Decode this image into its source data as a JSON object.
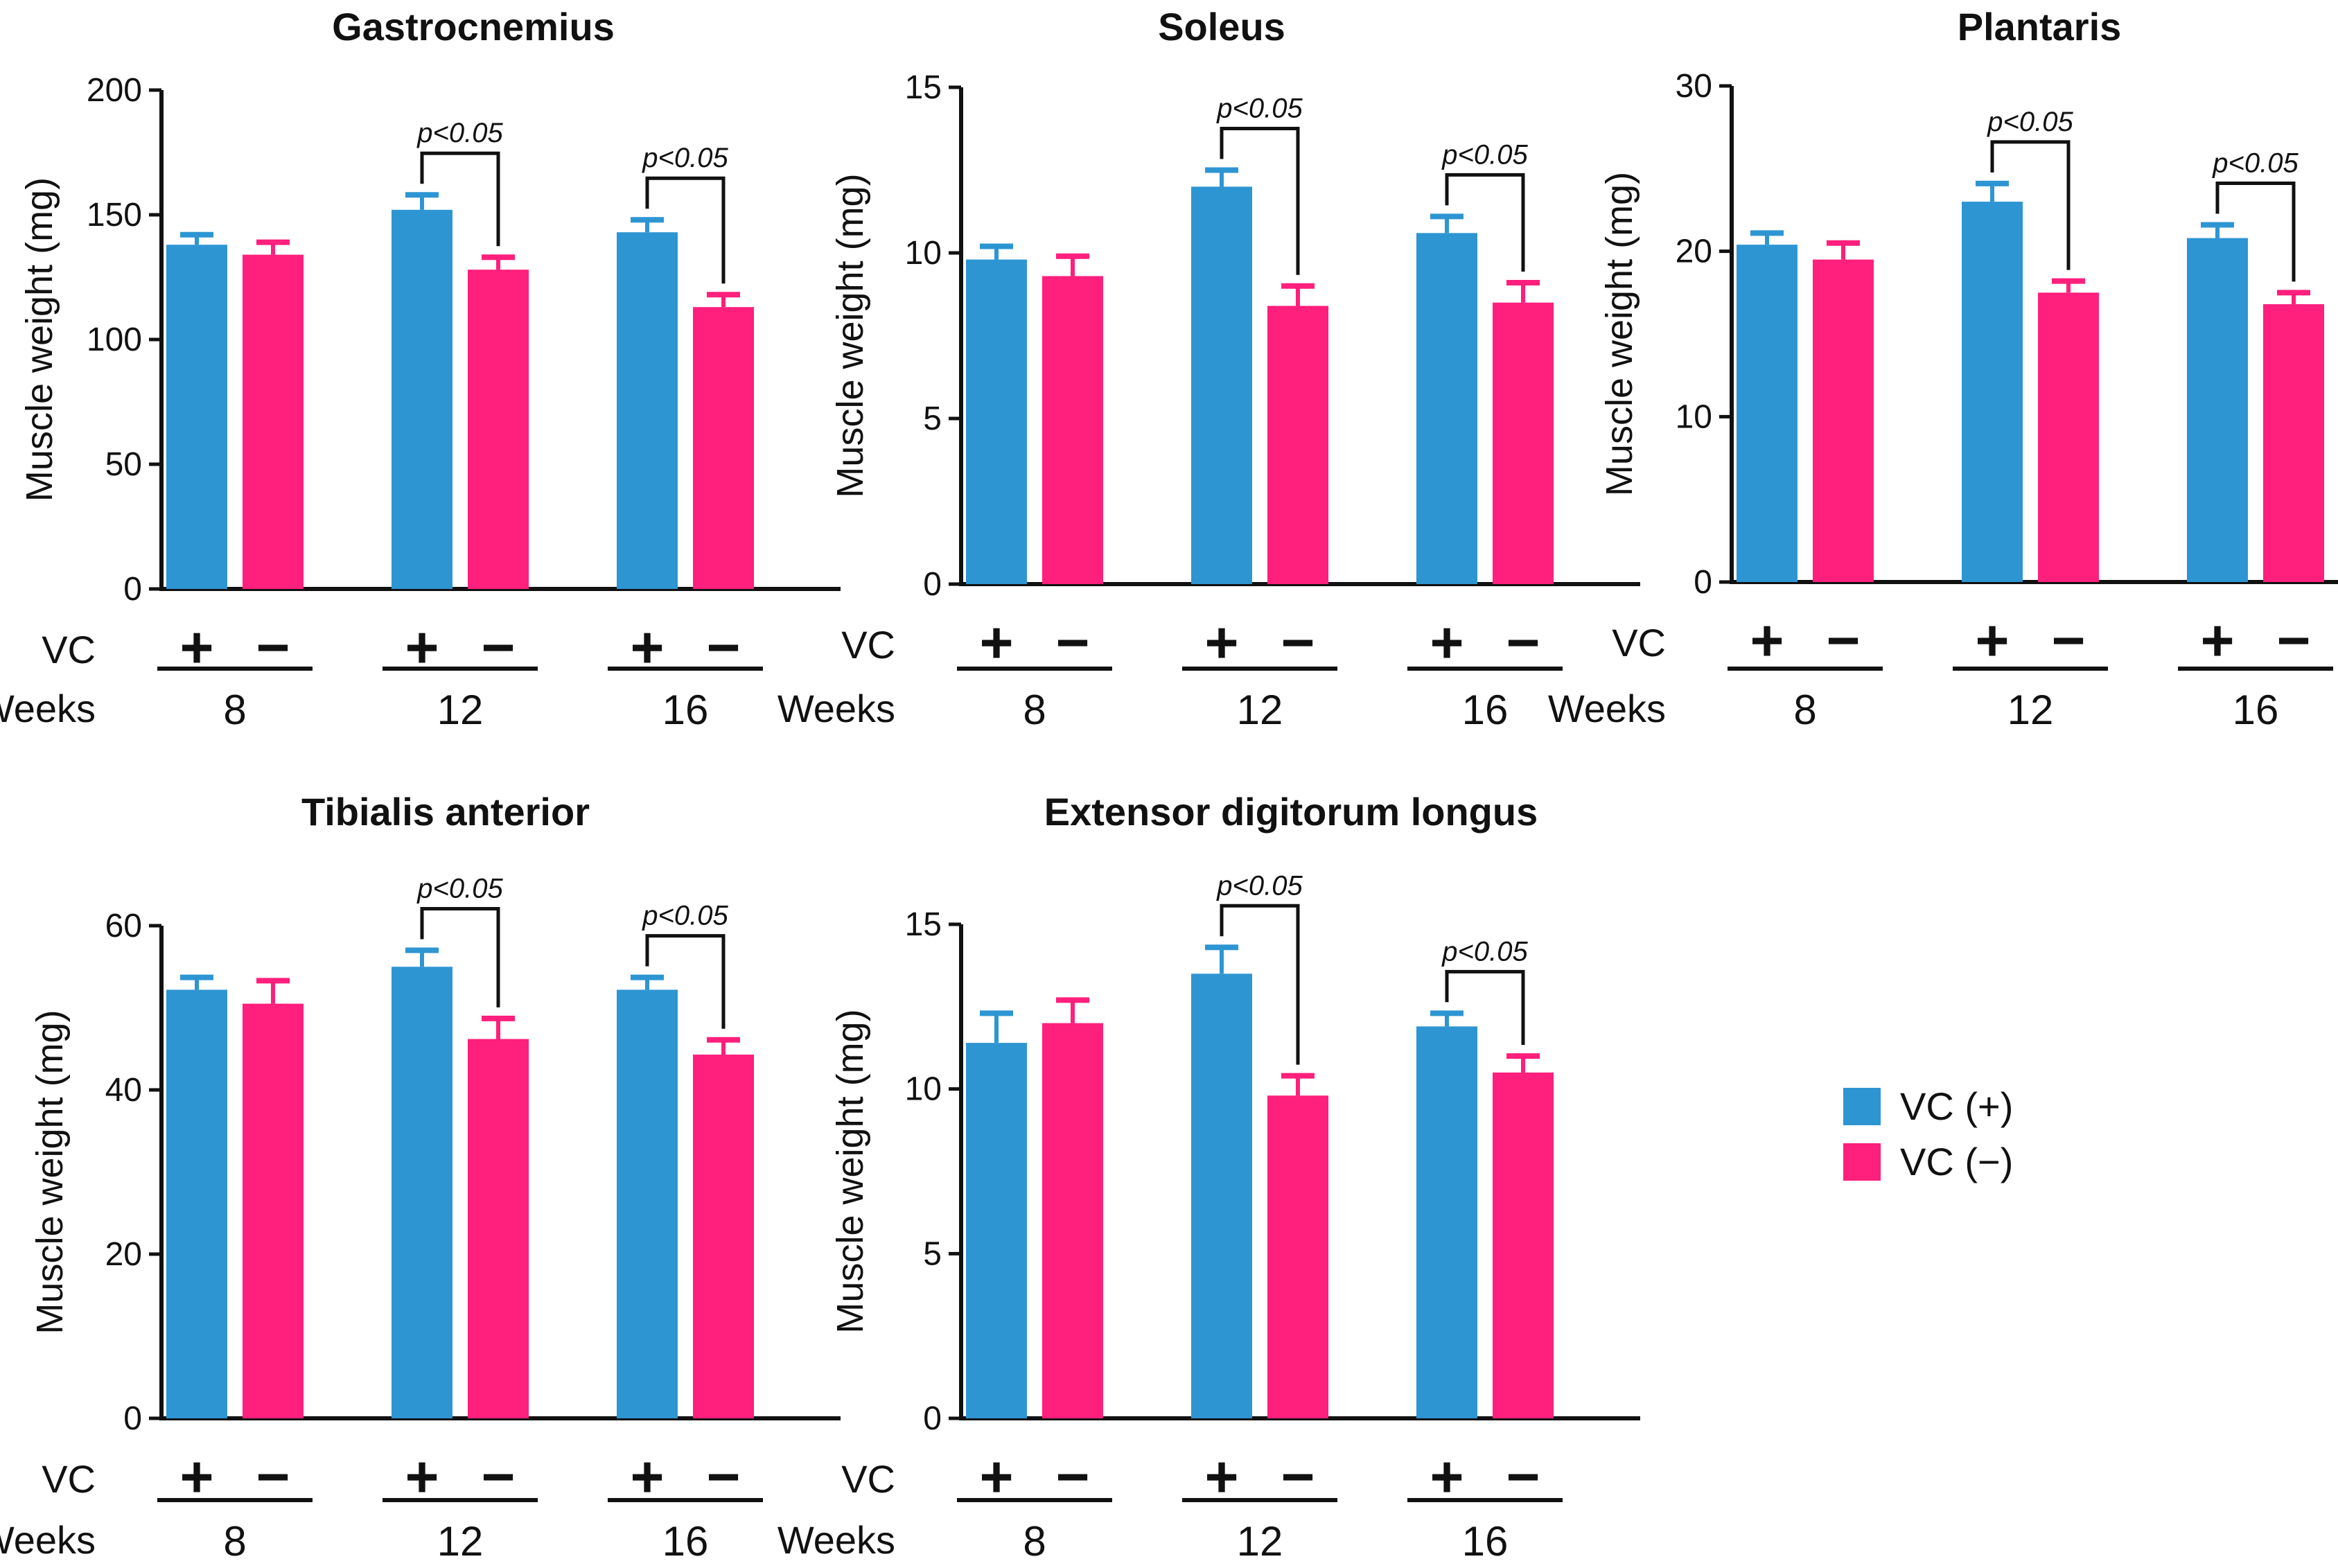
{
  "legend": [
    {
      "label": "VC (+)",
      "color": "#2e95d3"
    },
    {
      "label": "VC (−)",
      "color": "#ff1f7c"
    }
  ],
  "chart_data": [
    {
      "type": "bar",
      "title": "Gastrocnemius",
      "ylabel": "Muscle weight (mg)",
      "ylim": [
        0,
        200
      ],
      "yticks": [
        0,
        50,
        100,
        150,
        200
      ],
      "row_labels": {
        "vc": "VC",
        "weeks": "Weeks"
      },
      "categories": [
        "8",
        "12",
        "16"
      ],
      "series": [
        {
          "name": "VC (+)",
          "symbol": "+",
          "values": [
            138,
            152,
            143
          ],
          "errors": [
            4,
            6,
            5
          ]
        },
        {
          "name": "VC (−)",
          "symbol": "−",
          "values": [
            134,
            128,
            113
          ],
          "errors": [
            5,
            5,
            5
          ]
        }
      ],
      "annotations": [
        {
          "group": "12",
          "text": "p<0.05"
        },
        {
          "group": "16",
          "text": "p<0.05"
        }
      ]
    },
    {
      "type": "bar",
      "title": "Soleus",
      "ylabel": "Muscle weight (mg)",
      "ylim": [
        0,
        15
      ],
      "yticks": [
        0,
        5,
        10,
        15
      ],
      "row_labels": {
        "vc": "VC",
        "weeks": "Weeks"
      },
      "categories": [
        "8",
        "12",
        "16"
      ],
      "series": [
        {
          "name": "VC (+)",
          "symbol": "+",
          "values": [
            9.8,
            12.0,
            10.6
          ],
          "errors": [
            0.4,
            0.5,
            0.5
          ]
        },
        {
          "name": "VC (−)",
          "symbol": "−",
          "values": [
            9.3,
            8.4,
            8.5
          ],
          "errors": [
            0.6,
            0.6,
            0.6
          ]
        }
      ],
      "annotations": [
        {
          "group": "12",
          "text": "p<0.05"
        },
        {
          "group": "16",
          "text": "p<0.05"
        }
      ]
    },
    {
      "type": "bar",
      "title": "Plantaris",
      "ylabel": "Muscle weight (mg)",
      "ylim": [
        0,
        30
      ],
      "yticks": [
        0,
        10,
        20,
        30
      ],
      "row_labels": {
        "vc": "VC",
        "weeks": "Weeks"
      },
      "categories": [
        "8",
        "12",
        "16"
      ],
      "series": [
        {
          "name": "VC (+)",
          "symbol": "+",
          "values": [
            20.4,
            23.0,
            20.8
          ],
          "errors": [
            0.7,
            1.1,
            0.8
          ]
        },
        {
          "name": "VC (−)",
          "symbol": "−",
          "values": [
            19.5,
            17.5,
            16.8
          ],
          "errors": [
            1.0,
            0.7,
            0.7
          ]
        }
      ],
      "annotations": [
        {
          "group": "12",
          "text": "p<0.05"
        },
        {
          "group": "16",
          "text": "p<0.05"
        }
      ]
    },
    {
      "type": "bar",
      "title": "Tibialis anterior",
      "ylabel": "Muscle weight (mg)",
      "ylim": [
        0,
        60
      ],
      "yticks": [
        0,
        20,
        40,
        60
      ],
      "row_labels": {
        "vc": "VC",
        "weeks": "Weeks"
      },
      "categories": [
        "8",
        "12",
        "16"
      ],
      "series": [
        {
          "name": "VC (+)",
          "symbol": "+",
          "values": [
            52.2,
            55.0,
            52.2
          ],
          "errors": [
            1.5,
            2.0,
            1.5
          ]
        },
        {
          "name": "VC (−)",
          "symbol": "−",
          "values": [
            50.5,
            46.2,
            44.3
          ],
          "errors": [
            2.8,
            2.5,
            1.8
          ]
        }
      ],
      "annotations": [
        {
          "group": "12",
          "text": "p<0.05"
        },
        {
          "group": "16",
          "text": "p<0.05"
        }
      ]
    },
    {
      "type": "bar",
      "title": "Extensor digitorum longus",
      "ylabel": "Muscle weight (mg)",
      "ylim": [
        0,
        15
      ],
      "yticks": [
        0,
        5,
        10,
        15
      ],
      "row_labels": {
        "vc": "VC",
        "weeks": "Weeks"
      },
      "categories": [
        "8",
        "12",
        "16"
      ],
      "series": [
        {
          "name": "VC (+)",
          "symbol": "+",
          "values": [
            11.4,
            13.5,
            11.9
          ],
          "errors": [
            0.9,
            0.8,
            0.4
          ]
        },
        {
          "name": "VC (−)",
          "symbol": "−",
          "values": [
            12.0,
            9.8,
            10.5
          ],
          "errors": [
            0.7,
            0.6,
            0.5
          ]
        }
      ],
      "annotations": [
        {
          "group": "12",
          "text": "p<0.05"
        },
        {
          "group": "16",
          "text": "p<0.05"
        }
      ]
    }
  ]
}
